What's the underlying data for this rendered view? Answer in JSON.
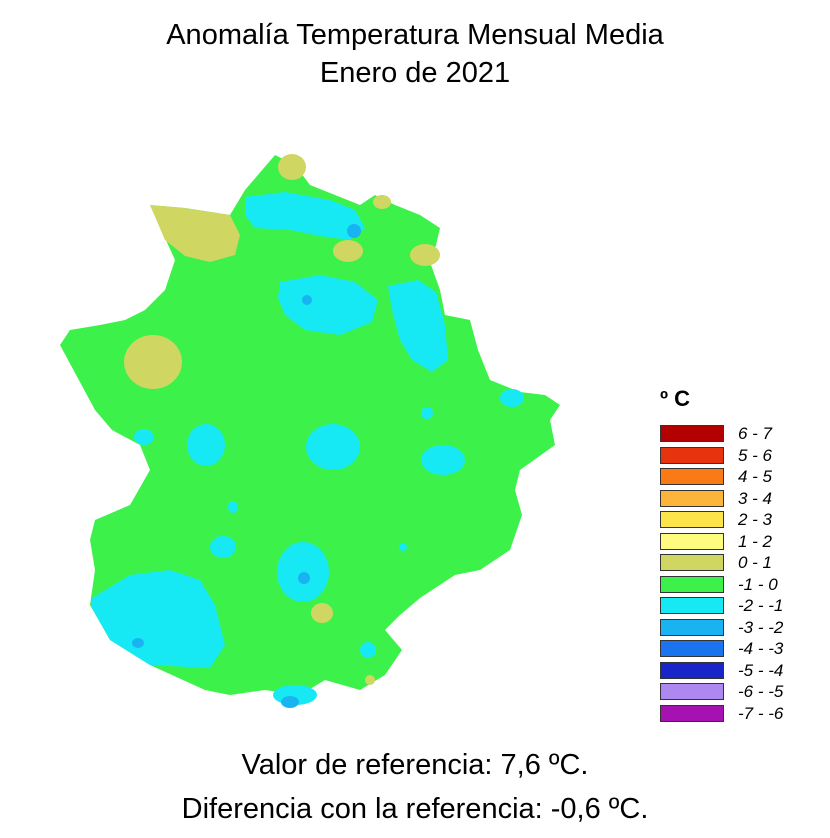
{
  "title_line1": "Anomalía Temperatura Mensual Media",
  "title_line2": "Enero de 2021",
  "legend": {
    "unit": "º C",
    "items": [
      {
        "label": "6 - 7",
        "color": "#b30000"
      },
      {
        "label": "5 - 6",
        "color": "#e8340e"
      },
      {
        "label": "4 - 5",
        "color": "#fb7a18"
      },
      {
        "label": "3 - 4",
        "color": "#fcb43a"
      },
      {
        "label": "2 - 3",
        "color": "#fde44a"
      },
      {
        "label": "1 - 2",
        "color": "#fefc7e"
      },
      {
        "label": "0 - 1",
        "color": "#cfd661"
      },
      {
        "label": "-1 - 0",
        "color": "#3cf24a"
      },
      {
        "label": "-2 - -1",
        "color": "#17e9f4"
      },
      {
        "label": "-3 - -2",
        "color": "#1ab3f1"
      },
      {
        "label": "-4 - -3",
        "color": "#1a73ef"
      },
      {
        "label": "-5 - -4",
        "color": "#1826c9"
      },
      {
        "label": "-6 - -5",
        "color": "#ac88f0"
      },
      {
        "label": "-7 - -6",
        "color": "#a612b2"
      }
    ]
  },
  "footer_line1": "Valor de referencia: 7,6 ºC.",
  "footer_line2": "Diferencia con la referencia: -0,6 ºC."
}
